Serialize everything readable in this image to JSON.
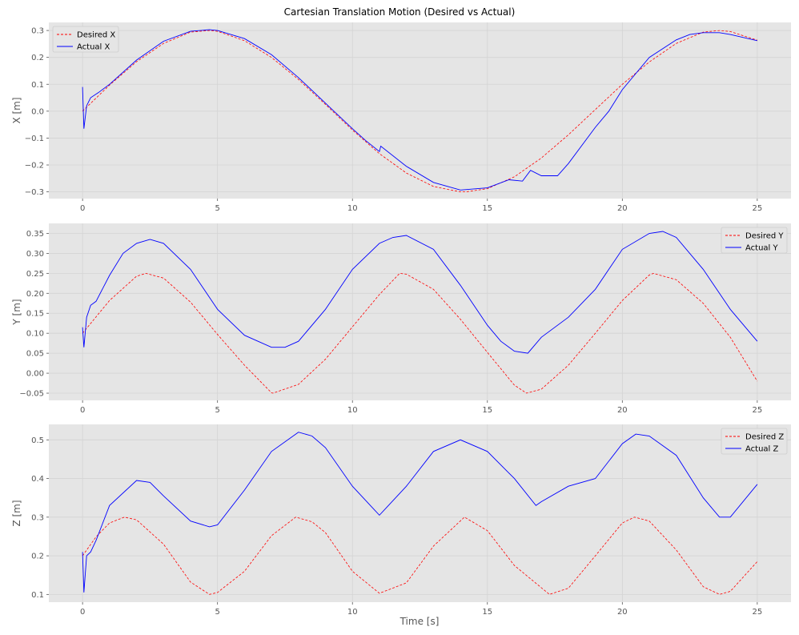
{
  "figure": {
    "title": "Cartesian Translation Motion (Desired vs Actual)",
    "xlabel": "Time [s]"
  },
  "colors": {
    "plot_background": "#e5e5e5",
    "grid": "#d4d4d4",
    "desired": "#ff0000",
    "actual": "#0000ff"
  },
  "chart_data": [
    {
      "type": "line",
      "ylabel": "X [m]",
      "xlim": [
        -1.25,
        26.25
      ],
      "ylim": [
        -0.325,
        0.33
      ],
      "xticks": [
        0,
        5,
        10,
        15,
        20,
        25
      ],
      "yticks": [
        -0.3,
        -0.2,
        -0.1,
        0.0,
        0.1,
        0.2,
        0.3
      ],
      "ytick_labels": [
        "−0.3",
        "−0.2",
        "−0.1",
        "0.0",
        "0.1",
        "0.2",
        "0.3"
      ],
      "grid": true,
      "legend_position": "top-left",
      "series": [
        {
          "name": "Desired X",
          "style": "dashed",
          "x": [
            0,
            1,
            2,
            3,
            4,
            4.7,
            5,
            6,
            7,
            8,
            9,
            10,
            11,
            12,
            13,
            14,
            14.2,
            15,
            16,
            17,
            18,
            19,
            20,
            21,
            22,
            23,
            23.6,
            24,
            25
          ],
          "y": [
            0.0,
            0.097,
            0.184,
            0.252,
            0.294,
            0.3,
            0.297,
            0.262,
            0.2,
            0.118,
            0.025,
            -0.07,
            -0.158,
            -0.23,
            -0.28,
            -0.3,
            -0.3,
            -0.288,
            -0.244,
            -0.174,
            -0.088,
            0.006,
            0.1,
            0.183,
            0.252,
            0.294,
            0.3,
            0.296,
            0.264
          ]
        },
        {
          "name": "Actual X",
          "style": "solid",
          "x": [
            0,
            0.05,
            0.15,
            0.3,
            0.6,
            1,
            2,
            3,
            4,
            4.7,
            5,
            6,
            7,
            8,
            9,
            10,
            10.5,
            11,
            11.05,
            12,
            13,
            14,
            15,
            15.8,
            16.3,
            16.6,
            17,
            17.6,
            18,
            19,
            19.5,
            20,
            21,
            22,
            22.5,
            23,
            23.6,
            24,
            25
          ],
          "y": [
            0.09,
            -0.065,
            0.02,
            0.05,
            0.07,
            0.1,
            0.19,
            0.26,
            0.297,
            0.303,
            0.3,
            0.27,
            0.21,
            0.125,
            0.03,
            -0.065,
            -0.11,
            -0.15,
            -0.13,
            -0.205,
            -0.265,
            -0.293,
            -0.285,
            -0.255,
            -0.26,
            -0.22,
            -0.24,
            -0.24,
            -0.195,
            -0.06,
            0.0,
            0.08,
            0.2,
            0.265,
            0.285,
            0.292,
            0.292,
            0.285,
            0.262
          ]
        }
      ]
    },
    {
      "type": "line",
      "ylabel": "Y [m]",
      "xlim": [
        -1.25,
        26.25
      ],
      "ylim": [
        -0.068,
        0.375
      ],
      "xticks": [
        0,
        5,
        10,
        15,
        20,
        25
      ],
      "yticks": [
        -0.05,
        0.0,
        0.05,
        0.1,
        0.15,
        0.2,
        0.25,
        0.3,
        0.35
      ],
      "ytick_labels": [
        "−0.05",
        "0.00",
        "0.05",
        "0.10",
        "0.15",
        "0.20",
        "0.25",
        "0.30",
        "0.35"
      ],
      "grid": true,
      "legend_position": "top-right",
      "series": [
        {
          "name": "Desired Y",
          "style": "dashed",
          "x": [
            0,
            1,
            2,
            2.35,
            3,
            4,
            5,
            6,
            7,
            7.05,
            8,
            9,
            10,
            11,
            11.75,
            12,
            13,
            14,
            15,
            16,
            16.45,
            17,
            18,
            19,
            20,
            21,
            21.15,
            22,
            23,
            24,
            25
          ],
          "y": [
            0.1,
            0.182,
            0.243,
            0.25,
            0.238,
            0.178,
            0.097,
            0.02,
            -0.049,
            -0.05,
            -0.028,
            0.035,
            0.116,
            0.197,
            0.25,
            0.248,
            0.21,
            0.135,
            0.052,
            -0.03,
            -0.05,
            -0.04,
            0.02,
            0.1,
            0.182,
            0.246,
            0.25,
            0.234,
            0.175,
            0.09,
            -0.02
          ]
        },
        {
          "name": "Actual Y",
          "style": "solid",
          "x": [
            0,
            0.05,
            0.15,
            0.3,
            0.5,
            1,
            1.5,
            2,
            2.5,
            3,
            4,
            5,
            6,
            7,
            7.5,
            8,
            9,
            10,
            11,
            11.5,
            12,
            13,
            14,
            15,
            15.5,
            16,
            16.5,
            17,
            18,
            19,
            20,
            21,
            21.5,
            22,
            23,
            24,
            25
          ],
          "y": [
            0.115,
            0.065,
            0.14,
            0.17,
            0.18,
            0.245,
            0.3,
            0.325,
            0.335,
            0.325,
            0.26,
            0.16,
            0.095,
            0.065,
            0.065,
            0.08,
            0.16,
            0.26,
            0.325,
            0.34,
            0.345,
            0.31,
            0.22,
            0.12,
            0.08,
            0.055,
            0.05,
            0.09,
            0.14,
            0.21,
            0.31,
            0.35,
            0.355,
            0.34,
            0.26,
            0.16,
            0.08
          ]
        }
      ]
    },
    {
      "type": "line",
      "ylabel": "Z [m]",
      "xlim": [
        -1.25,
        26.25
      ],
      "ylim": [
        0.08,
        0.54
      ],
      "xticks": [
        0,
        5,
        10,
        15,
        20,
        25
      ],
      "yticks": [
        0.1,
        0.2,
        0.3,
        0.4,
        0.5
      ],
      "ytick_labels": [
        "0.1",
        "0.2",
        "0.3",
        "0.4",
        "0.5"
      ],
      "grid": true,
      "legend_position": "top-right",
      "series": [
        {
          "name": "Desired Z",
          "style": "dashed",
          "x": [
            0,
            0.5,
            1,
            1.55,
            2,
            3,
            4,
            4.7,
            5,
            6,
            7,
            7.9,
            8.5,
            9,
            10,
            11,
            12,
            13,
            14.15,
            15,
            16,
            17.3,
            18,
            19,
            20,
            20.45,
            21,
            22,
            23,
            23.6,
            24,
            25
          ],
          "y": [
            0.2,
            0.249,
            0.285,
            0.3,
            0.293,
            0.23,
            0.132,
            0.1,
            0.105,
            0.16,
            0.252,
            0.3,
            0.288,
            0.26,
            0.16,
            0.103,
            0.13,
            0.225,
            0.3,
            0.265,
            0.175,
            0.1,
            0.116,
            0.2,
            0.285,
            0.3,
            0.29,
            0.215,
            0.12,
            0.1,
            0.108,
            0.185
          ]
        },
        {
          "name": "Actual Z",
          "style": "solid",
          "x": [
            0,
            0.05,
            0.15,
            0.3,
            0.5,
            1,
            2,
            2.5,
            3,
            4,
            4.7,
            5,
            6,
            7,
            8,
            8.5,
            9,
            10,
            11,
            12,
            13,
            14,
            15,
            16,
            16.8,
            17,
            18,
            19,
            20,
            20.5,
            21,
            22,
            23,
            23.6,
            24,
            25
          ],
          "y": [
            0.21,
            0.105,
            0.2,
            0.21,
            0.24,
            0.33,
            0.395,
            0.39,
            0.355,
            0.29,
            0.275,
            0.28,
            0.37,
            0.47,
            0.52,
            0.51,
            0.48,
            0.38,
            0.305,
            0.38,
            0.47,
            0.5,
            0.47,
            0.4,
            0.33,
            0.34,
            0.38,
            0.4,
            0.49,
            0.515,
            0.51,
            0.46,
            0.35,
            0.3,
            0.3,
            0.385
          ]
        }
      ]
    }
  ]
}
